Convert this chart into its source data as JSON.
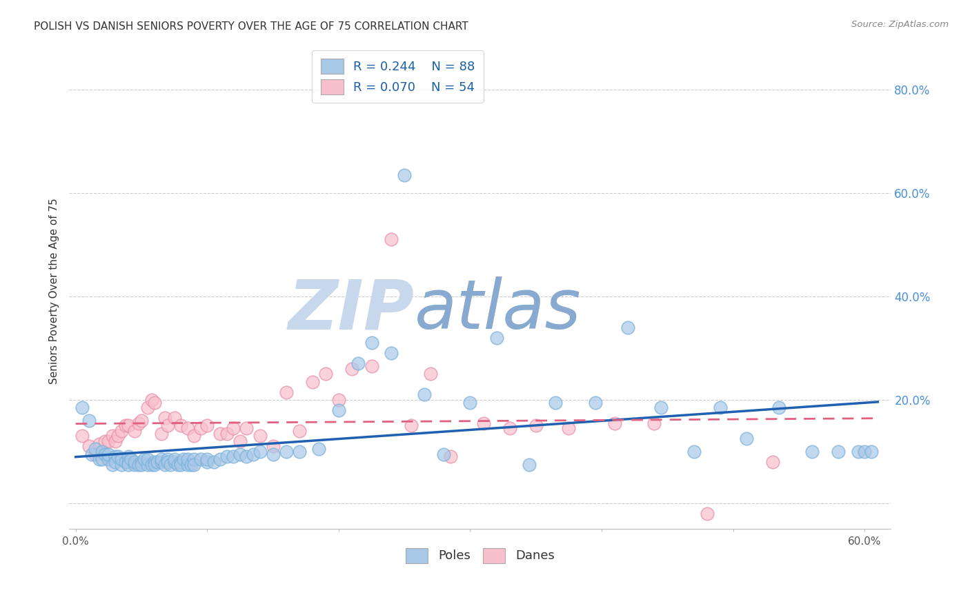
{
  "title": "POLISH VS DANISH SENIORS POVERTY OVER THE AGE OF 75 CORRELATION CHART",
  "source": "Source: ZipAtlas.com",
  "ylabel": "Seniors Poverty Over the Age of 75",
  "xlim": [
    -0.005,
    0.62
  ],
  "ylim": [
    -0.05,
    0.87
  ],
  "xticks": [
    0.0,
    0.1,
    0.2,
    0.3,
    0.4,
    0.5,
    0.6
  ],
  "xticklabels": [
    "0.0%",
    "",
    "",
    "",
    "",
    "",
    "60.0%"
  ],
  "yticks_right": [
    0.0,
    0.2,
    0.4,
    0.6,
    0.8
  ],
  "yticklabels_right": [
    "",
    "20.0%",
    "40.0%",
    "60.0%",
    "80.0%"
  ],
  "poles_R": 0.244,
  "poles_N": 88,
  "danes_R": 0.07,
  "danes_N": 54,
  "poles_color": "#a8c8e8",
  "poles_edge_color": "#7ab0d8",
  "danes_color": "#f8c0cc",
  "danes_edge_color": "#e890a8",
  "poles_line_color": "#2060b0",
  "danes_line_color": "#e06080",
  "watermark_zip_color": "#c8d8ec",
  "watermark_atlas_color": "#88aad0",
  "poles_scatter_x": [
    0.005,
    0.01,
    0.012,
    0.015,
    0.018,
    0.02,
    0.02,
    0.022,
    0.025,
    0.025,
    0.028,
    0.03,
    0.03,
    0.032,
    0.035,
    0.035,
    0.038,
    0.04,
    0.04,
    0.04,
    0.042,
    0.045,
    0.045,
    0.048,
    0.05,
    0.05,
    0.052,
    0.055,
    0.055,
    0.058,
    0.06,
    0.06,
    0.062,
    0.065,
    0.065,
    0.068,
    0.07,
    0.07,
    0.072,
    0.075,
    0.075,
    0.078,
    0.08,
    0.08,
    0.082,
    0.085,
    0.085,
    0.088,
    0.09,
    0.09,
    0.095,
    0.1,
    0.1,
    0.105,
    0.11,
    0.115,
    0.12,
    0.125,
    0.13,
    0.135,
    0.14,
    0.15,
    0.16,
    0.17,
    0.185,
    0.2,
    0.215,
    0.225,
    0.24,
    0.25,
    0.265,
    0.28,
    0.3,
    0.32,
    0.345,
    0.365,
    0.395,
    0.42,
    0.445,
    0.47,
    0.49,
    0.51,
    0.535,
    0.56,
    0.58,
    0.595,
    0.6,
    0.605
  ],
  "poles_scatter_y": [
    0.185,
    0.16,
    0.095,
    0.105,
    0.085,
    0.1,
    0.085,
    0.095,
    0.085,
    0.095,
    0.075,
    0.09,
    0.08,
    0.09,
    0.075,
    0.085,
    0.08,
    0.09,
    0.08,
    0.075,
    0.085,
    0.075,
    0.08,
    0.075,
    0.08,
    0.075,
    0.085,
    0.075,
    0.085,
    0.075,
    0.08,
    0.075,
    0.08,
    0.08,
    0.085,
    0.075,
    0.085,
    0.08,
    0.075,
    0.08,
    0.085,
    0.075,
    0.08,
    0.075,
    0.085,
    0.075,
    0.085,
    0.075,
    0.085,
    0.075,
    0.085,
    0.08,
    0.085,
    0.08,
    0.085,
    0.09,
    0.09,
    0.095,
    0.09,
    0.095,
    0.1,
    0.095,
    0.1,
    0.1,
    0.105,
    0.18,
    0.27,
    0.31,
    0.29,
    0.635,
    0.21,
    0.095,
    0.195,
    0.32,
    0.075,
    0.195,
    0.195,
    0.34,
    0.185,
    0.1,
    0.185,
    0.125,
    0.185,
    0.1,
    0.1,
    0.1,
    0.1,
    0.1
  ],
  "danes_scatter_x": [
    0.005,
    0.01,
    0.015,
    0.018,
    0.02,
    0.022,
    0.025,
    0.028,
    0.03,
    0.032,
    0.035,
    0.038,
    0.04,
    0.045,
    0.048,
    0.05,
    0.055,
    0.058,
    0.06,
    0.065,
    0.068,
    0.07,
    0.075,
    0.08,
    0.085,
    0.09,
    0.095,
    0.1,
    0.11,
    0.115,
    0.12,
    0.125,
    0.13,
    0.14,
    0.15,
    0.16,
    0.17,
    0.18,
    0.19,
    0.2,
    0.21,
    0.225,
    0.24,
    0.255,
    0.27,
    0.285,
    0.31,
    0.33,
    0.35,
    0.375,
    0.41,
    0.44,
    0.48,
    0.53
  ],
  "danes_scatter_y": [
    0.13,
    0.11,
    0.095,
    0.115,
    0.1,
    0.12,
    0.12,
    0.13,
    0.12,
    0.13,
    0.14,
    0.15,
    0.15,
    0.14,
    0.155,
    0.16,
    0.185,
    0.2,
    0.195,
    0.135,
    0.165,
    0.15,
    0.165,
    0.15,
    0.145,
    0.13,
    0.145,
    0.15,
    0.135,
    0.135,
    0.145,
    0.12,
    0.145,
    0.13,
    0.11,
    0.215,
    0.14,
    0.235,
    0.25,
    0.2,
    0.26,
    0.265,
    0.51,
    0.15,
    0.25,
    0.09,
    0.155,
    0.145,
    0.15,
    0.145,
    0.155,
    0.155,
    -0.02,
    0.08
  ]
}
